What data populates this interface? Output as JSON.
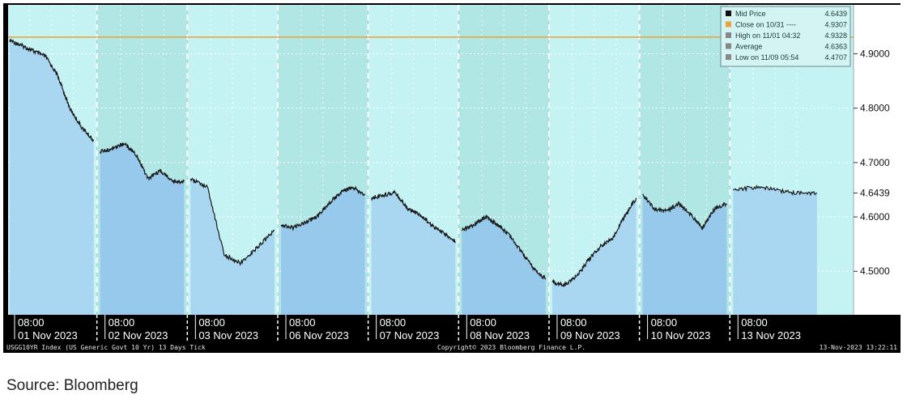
{
  "chart_data": {
    "type": "area",
    "title": "",
    "xlabel": "",
    "ylabel": "",
    "ylim": [
      4.42,
      4.99
    ],
    "y_ticks": [
      "4.9000",
      "4.8000",
      "4.7000",
      "4.6439",
      "4.6000",
      "4.5000"
    ],
    "y_tick_values": [
      4.9,
      4.8,
      4.7,
      4.6439,
      4.6,
      4.5
    ],
    "day_tick_time": "08:00",
    "days": [
      {
        "label": "01 Nov 2023",
        "points": [
          4.925,
          4.915,
          4.905,
          4.895,
          4.86,
          4.8,
          4.765,
          4.74
        ]
      },
      {
        "label": "02 Nov 2023",
        "points": [
          4.72,
          4.725,
          4.735,
          4.715,
          4.67,
          4.685,
          4.665,
          4.665
        ]
      },
      {
        "label": "03 Nov 2023",
        "points": [
          4.67,
          4.655,
          4.53,
          4.515,
          4.545,
          4.575
        ]
      },
      {
        "label": "06 Nov 2023",
        "points": [
          4.585,
          4.58,
          4.59,
          4.6,
          4.625,
          4.645,
          4.655,
          4.64
        ]
      },
      {
        "label": "07 Nov 2023",
        "points": [
          4.635,
          4.64,
          4.645,
          4.615,
          4.605,
          4.585,
          4.57,
          4.555
        ]
      },
      {
        "label": "08 Nov 2023",
        "points": [
          4.575,
          4.585,
          4.6,
          4.585,
          4.565,
          4.535,
          4.505,
          4.485
        ]
      },
      {
        "label": "09 Nov 2023",
        "points": [
          4.48,
          4.475,
          4.49,
          4.52,
          4.545,
          4.56,
          4.6,
          4.635
        ]
      },
      {
        "label": "10 Nov 2023",
        "points": [
          4.64,
          4.615,
          4.61,
          4.625,
          4.605,
          4.58,
          4.615,
          4.625
        ]
      },
      {
        "label": "13 Nov 2023",
        "points": [
          4.65,
          4.655,
          4.645,
          4.6439
        ]
      }
    ],
    "reference_line": {
      "label": "Close on 10/31",
      "value": 4.9307,
      "color": "#e8a33a"
    },
    "legend_position": "top-right",
    "legend": [
      {
        "label": "Mid Price",
        "value": "4.6439",
        "marker": "#111111"
      },
      {
        "label": "Close on 10/31 ----",
        "value": "4.9307",
        "marker": "#e8a33a"
      },
      {
        "label": "High on 11/01 04:32",
        "value": "4.9328",
        "marker": "#888888"
      },
      {
        "label": "Average",
        "value": "4.6363",
        "marker": "#888888"
      },
      {
        "label": "Low on 11/09 05:54",
        "value": "4.4707",
        "marker": "#888888"
      }
    ],
    "colors": {
      "plot_bg_a": "#c5f2f3",
      "plot_bg_b": "#b0e6e3",
      "area_a": "#a9d7f2",
      "area_b": "#97c9ec",
      "line": "#1a1a1a",
      "axis_bg": "#000000"
    }
  },
  "footer": {
    "left": "USGG10YR Index (US Generic Govt 10 Yr) 13 Days  Tick",
    "center": "Copyright© 2023 Bloomberg Finance L.P.",
    "right": "13-Nov-2023 13:22:11"
  },
  "source_note": "Source: Bloomberg"
}
